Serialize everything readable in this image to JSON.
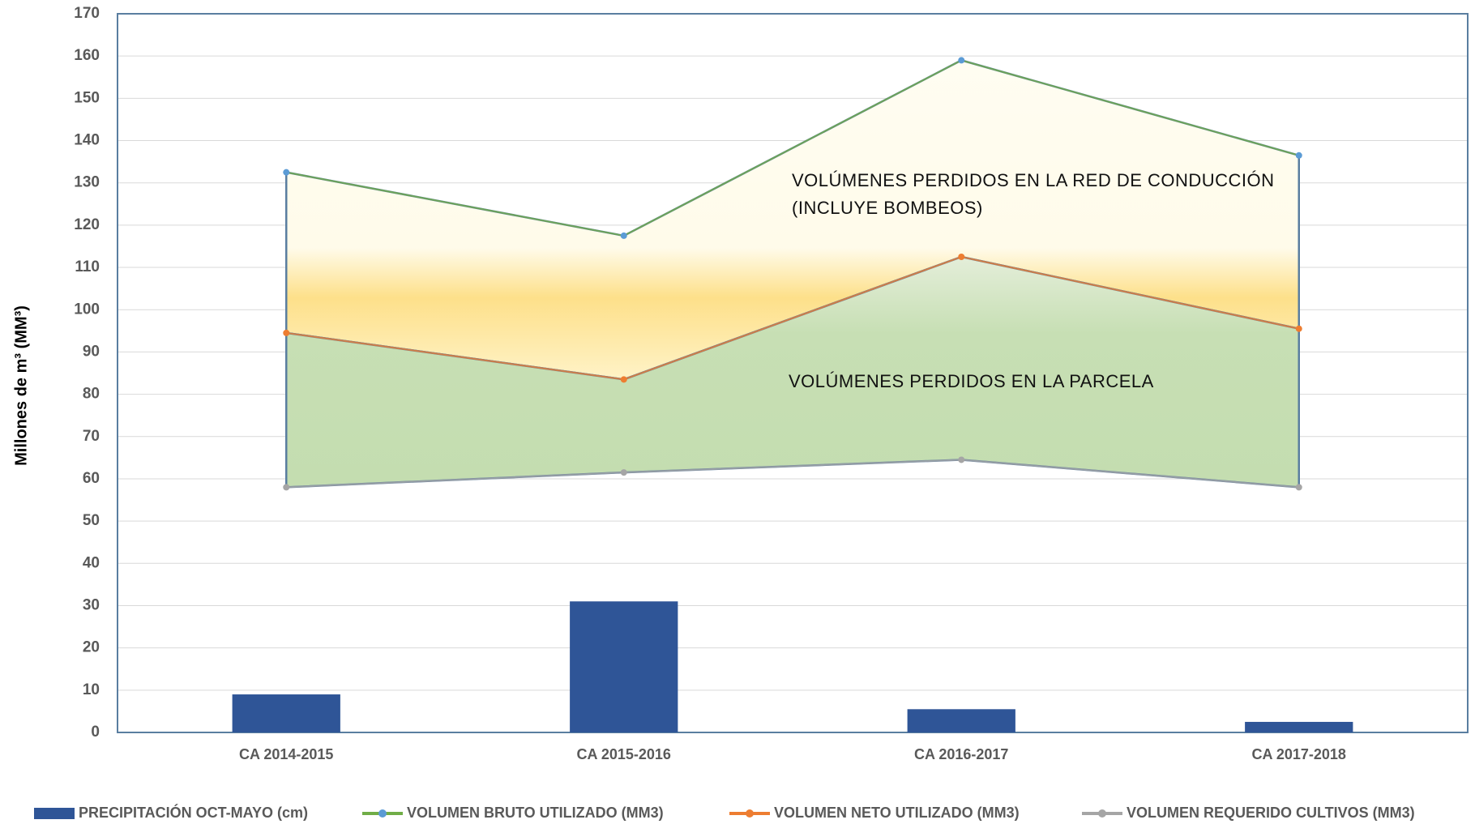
{
  "chart_data": {
    "type": "combo",
    "ylabel": "Millones de m³ (MM³)",
    "categories": [
      "CA 2014-2015",
      "CA 2015-2016",
      "CA 2016-2017",
      "CA 2017-2018"
    ],
    "ylim": [
      0,
      170
    ],
    "yticks": [
      0,
      10,
      20,
      30,
      40,
      50,
      60,
      70,
      80,
      90,
      100,
      110,
      120,
      130,
      140,
      150,
      160,
      170
    ],
    "grid": true,
    "legend": "bottom",
    "series": [
      {
        "name": "PRECIPITACIÓN OCT-MAYO  (cm)",
        "type": "bar",
        "color": "#2f5597",
        "values": [
          9,
          31,
          5.5,
          2.5
        ]
      },
      {
        "name": "VOLUMEN  BRUTO UTILIZADO (MM3)",
        "type": "line",
        "color": "#70ad47",
        "marker": "#5b9bd5",
        "values": [
          132.5,
          117.5,
          159,
          136.5
        ]
      },
      {
        "name": "VOLUMEN  NETO UTILIZADO (MM3)",
        "type": "line",
        "color": "#ed7d31",
        "marker": "#ed7d31",
        "values": [
          94.5,
          83.5,
          112.5,
          95.5
        ]
      },
      {
        "name": "VOLUMEN  REQUERIDO CULTIVOS (MM3)",
        "type": "line",
        "color": "#a5a5a5",
        "marker": "#a5a5a5",
        "values": [
          58,
          61.5,
          64.5,
          58
        ]
      }
    ],
    "annotations": [
      "VOLÚMENES PERDIDOS EN LA RED DE CONDUCCIÓN",
      "(INCLUYE BOMBEOS)",
      "VOLÚMENES PERDIDOS EN LA  PARCELA"
    ]
  }
}
